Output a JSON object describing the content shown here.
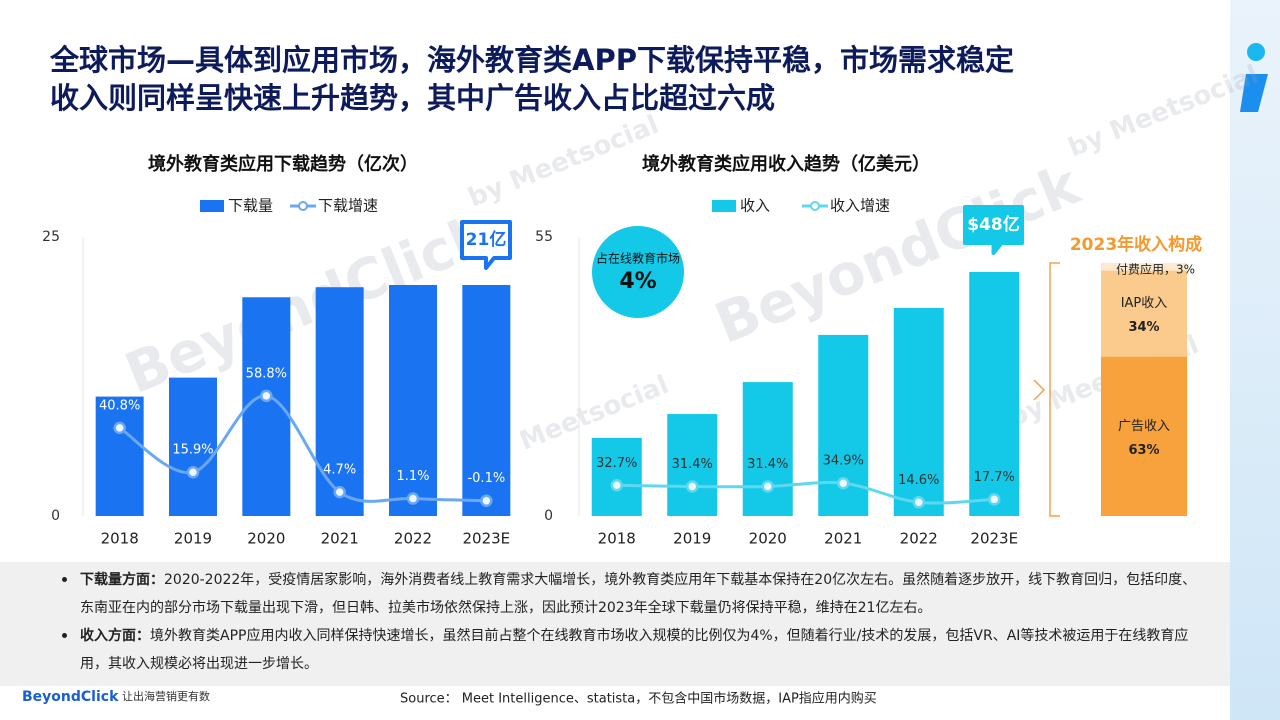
{
  "header": {
    "title_lines": [
      "全球市场—具体到应用市场，海外教育类APP下载保持平稳，市场需求稳定",
      "收入则同样呈快速上升趋势，其中广告收入占比超过六成"
    ]
  },
  "chart_data": [
    {
      "type": "bar_line",
      "title": "境外教育类应用下载趋势（亿次）",
      "categories": [
        "2018",
        "2019",
        "2020",
        "2021",
        "2022",
        "2023E"
      ],
      "series": [
        {
          "name": "下载量",
          "type": "bar",
          "color": "#1a73f0",
          "values": [
            10.7,
            12.4,
            19.6,
            20.5,
            20.7,
            20.7
          ]
        },
        {
          "name": "下载增速",
          "type": "line",
          "axis": "y2",
          "color": "#6aa8f5",
          "values": [
            40.8,
            15.9,
            58.8,
            4.7,
            1.1,
            -0.1
          ],
          "value_labels": [
            "40.8%",
            "15.9%",
            "58.8%",
            "4.7%",
            "1.1%",
            "-0.1%"
          ]
        }
      ],
      "ylim": [
        0,
        25
      ],
      "yticks": [
        0,
        25
      ],
      "y2lim": [
        -8.7,
        148
      ],
      "annotations": [
        "21亿"
      ]
    },
    {
      "type": "bar_line",
      "title": "境外教育类应用收入趋势（亿美元）",
      "categories": [
        "2018",
        "2019",
        "2020",
        "2021",
        "2022",
        "2023E"
      ],
      "series": [
        {
          "name": "收入",
          "type": "bar",
          "color": "#14c8e8",
          "values": [
            15.4,
            20.1,
            26.4,
            35.7,
            41.0,
            48.1
          ]
        },
        {
          "name": "收入增速",
          "type": "line",
          "axis": "y2",
          "color": "#5fd8ef",
          "values": [
            32.7,
            31.4,
            31.4,
            34.9,
            14.6,
            17.7
          ],
          "value_labels": [
            "32.7%",
            "31.4%",
            "31.4%",
            "34.9%",
            "14.6%",
            "17.7%"
          ]
        }
      ],
      "ylim": [
        0,
        55
      ],
      "yticks": [
        0,
        55
      ],
      "y2lim": [
        0,
        297
      ],
      "annotations": [
        "$48亿"
      ],
      "callout": {
        "text": "占在线教育市场",
        "value": 4,
        "value_label": "4%"
      }
    },
    {
      "type": "stacked_bar",
      "title": "2023年收入构成",
      "ylim": [
        0,
        100
      ],
      "series": [
        {
          "name": "广告收入",
          "color": "#f7a23c",
          "values": [
            63
          ],
          "value_labels": [
            "63%"
          ]
        },
        {
          "name": "IAP收入",
          "color": "#fbcb8d",
          "values": [
            34
          ],
          "value_labels": [
            "34%"
          ]
        },
        {
          "name": "付费应用",
          "color": "#fde9cf",
          "values": [
            3
          ],
          "value_labels": [
            "，3%"
          ]
        }
      ]
    }
  ],
  "notes": [
    {
      "label": "下载量方面：",
      "text": "2020-2022年，受疫情居家影响，海外消费者线上教育需求大幅增长，境外教育类应用年下载基本保持在20亿次左右。虽然随着逐步放开，线下教育回归，包括印度、东南亚在内的部分市场下载量出现下滑，但日韩、拉美市场依然保持上涨，因此预计2023年全球下载量仍将保持平稳，维持在21亿左右。"
    },
    {
      "label": "收入方面：",
      "text": "境外教育类APP应用内收入同样保持快速增长，虽然目前占整个在线教育市场收入规模的比例仅为4%，但随着行业/技术的发展，包括VR、AI等技术被运用于在线教育应用，其收入规模必将出现进一步增长。"
    }
  ],
  "watermarks": [
    "BeyondClick",
    "by Meetsocial"
  ],
  "footer": {
    "logo": "BeyondClick",
    "slogan": "让出海营销更有数",
    "source": "Source： Meet Intelligence、statista，不包含中国市场数据，IAP指应用内购买"
  }
}
